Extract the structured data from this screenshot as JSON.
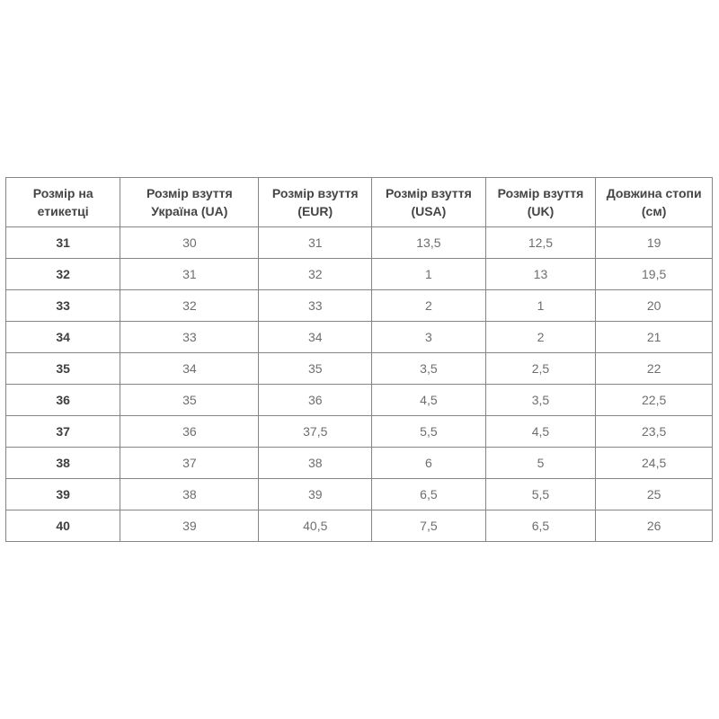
{
  "table": {
    "headers": [
      "Розмір на етикетці",
      "Розмір взуття Україна (UA)",
      "Розмір взуття (EUR)",
      "Розмір взуття (USA)",
      "Розмір взуття (UK)",
      "Довжина стопи (см)"
    ],
    "rows": [
      [
        "31",
        "30",
        "31",
        "13,5",
        "12,5",
        "19"
      ],
      [
        "32",
        "31",
        "32",
        "1",
        "13",
        "19,5"
      ],
      [
        "33",
        "32",
        "33",
        "2",
        "1",
        "20"
      ],
      [
        "34",
        "33",
        "34",
        "3",
        "2",
        "21"
      ],
      [
        "35",
        "34",
        "35",
        "3,5",
        "2,5",
        "22"
      ],
      [
        "36",
        "35",
        "36",
        "4,5",
        "3,5",
        "22,5"
      ],
      [
        "37",
        "36",
        "37,5",
        "5,5",
        "4,5",
        "23,5"
      ],
      [
        "38",
        "37",
        "38",
        "6",
        "5",
        "24,5"
      ],
      [
        "39",
        "38",
        "39",
        "6,5",
        "5,5",
        "25"
      ],
      [
        "40",
        "39",
        "40,5",
        "7,5",
        "6,5",
        "26"
      ]
    ],
    "colors": {
      "border": "#858585",
      "header_text": "#454545",
      "cell_text": "#6e6e6e",
      "label_text": "#3f3f3f",
      "background": "#ffffff"
    }
  }
}
